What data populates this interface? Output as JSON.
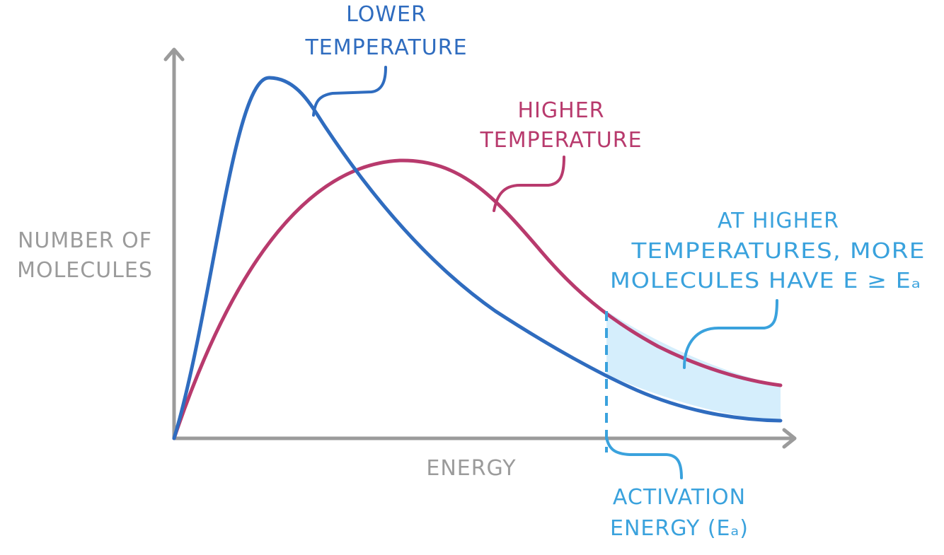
{
  "colors": {
    "axis": "#9b9b9b",
    "lower": "#2f6cbf",
    "higher": "#b83a6d",
    "annotation": "#3aa2dd",
    "shade": "#d5eefc",
    "axis_label": "#9b9b9b"
  },
  "axes": {
    "y_label_line1": "NUMBER OF",
    "y_label_line2": "MOLECULES",
    "x_label": "ENERGY"
  },
  "labels": {
    "lower_line1": "LOWER",
    "lower_line2": "TEMPERATURE",
    "higher_line1": "HIGHER",
    "higher_line2": "TEMPERATURE",
    "note_line1": "AT HIGHER",
    "note_line2": "TEMPERATURES, MORE",
    "note_line3": "MOLECULES HAVE E ≥ Eₐ",
    "activation_line1": "ACTIVATION",
    "activation_line2": "ENERGY (Eₐ)"
  },
  "icons": {
    "x_arrow": "arrow-right-icon",
    "y_arrow": "arrow-up-icon"
  }
}
